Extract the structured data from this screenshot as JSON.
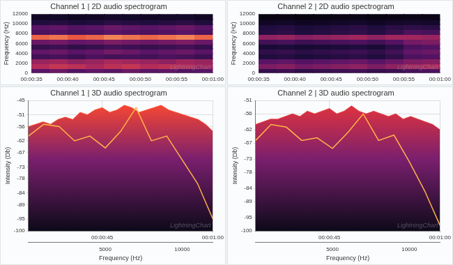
{
  "chart_data": [
    {
      "type": "heatmap",
      "title": "Channel 1 | 2D audio spectrogram",
      "ylabel": "Frequency (Hz)",
      "watermark": "LightningChart",
      "grid": false,
      "xlim": [
        35,
        60
      ],
      "xticks": [
        {
          "value": 35,
          "label": "00:00:35"
        },
        {
          "value": 40,
          "label": "00:00:40"
        },
        {
          "value": 45,
          "label": "00:00:45"
        },
        {
          "value": 50,
          "label": "00:00:50"
        },
        {
          "value": 55,
          "label": "00:00:55"
        },
        {
          "value": 60,
          "label": "00:01:00"
        }
      ],
      "ylim": [
        0,
        12000
      ],
      "yticks": [
        0,
        2000,
        4000,
        6000,
        8000,
        10000,
        12000
      ],
      "x_bins": [
        35,
        37.5,
        40,
        42.5,
        45,
        47.5,
        50,
        52.5,
        55,
        57.5,
        60
      ],
      "y_bins": [
        0,
        1000,
        2000,
        3000,
        4000,
        5000,
        6000,
        7000,
        8000,
        9000,
        10000,
        11000,
        12000
      ],
      "zlim": [
        -100,
        -45
      ],
      "cells": [
        [
          -70,
          -68,
          -71,
          -69,
          -70,
          -68,
          -70,
          -69,
          -71,
          -70
        ],
        [
          -60,
          -58,
          -59,
          -61,
          -59,
          -58,
          -60,
          -59,
          -60,
          -62
        ],
        [
          -63,
          -62,
          -64,
          -63,
          -61,
          -62,
          -63,
          -64,
          -62,
          -63
        ],
        [
          -74,
          -73,
          -75,
          -72,
          -74,
          -73,
          -74,
          -72,
          -73,
          -75
        ],
        [
          -69,
          -68,
          -70,
          -69,
          -67,
          -68,
          -70,
          -69,
          -68,
          -70
        ],
        [
          -76,
          -75,
          -77,
          -76,
          -74,
          -75,
          -76,
          -75,
          -74,
          -76
        ],
        [
          -68,
          -67,
          -69,
          -68,
          -66,
          -67,
          -68,
          -67,
          -66,
          -68
        ],
        [
          -52,
          -51,
          -53,
          -52,
          -50,
          -51,
          -52,
          -51,
          -50,
          -52
        ],
        [
          -72,
          -71,
          -73,
          -72,
          -70,
          -71,
          -72,
          -71,
          -70,
          -72
        ],
        [
          -70,
          -69,
          -71,
          -70,
          -68,
          -69,
          -70,
          -69,
          -68,
          -70
        ],
        [
          -80,
          -79,
          -81,
          -80,
          -78,
          -79,
          -80,
          -79,
          -78,
          -80
        ],
        [
          -88,
          -87,
          -89,
          -88,
          -86,
          -87,
          -88,
          -87,
          -86,
          -88
        ]
      ]
    },
    {
      "type": "heatmap",
      "title": "Channel 2 | 2D audio spectrogram",
      "ylabel": "Frequency (Hz)",
      "watermark": "LightningChart",
      "grid": false,
      "xlim": [
        35,
        60
      ],
      "xticks": [
        {
          "value": 35,
          "label": "00:00:35"
        },
        {
          "value": 40,
          "label": "00:00:40"
        },
        {
          "value": 45,
          "label": "00:00:45"
        },
        {
          "value": 50,
          "label": "00:00:50"
        },
        {
          "value": 55,
          "label": "00:00:55"
        },
        {
          "value": 60,
          "label": "00:01:00"
        }
      ],
      "ylim": [
        0,
        12000
      ],
      "yticks": [
        0,
        2000,
        4000,
        6000,
        8000,
        10000,
        12000
      ],
      "x_bins": [
        35,
        37.5,
        40,
        42.5,
        45,
        47.5,
        50,
        52.5,
        55,
        57.5,
        60
      ],
      "y_bins": [
        0,
        1000,
        2000,
        3000,
        4000,
        5000,
        6000,
        7000,
        8000,
        9000,
        10000,
        11000,
        12000
      ],
      "zlim": [
        -100,
        -45
      ],
      "cells": [
        [
          -76,
          -75,
          -77,
          -76,
          -75,
          -74,
          -76,
          -75,
          -73,
          -72
        ],
        [
          -66,
          -65,
          -67,
          -66,
          -65,
          -64,
          -66,
          -64,
          -62,
          -61
        ],
        [
          -70,
          -69,
          -71,
          -70,
          -69,
          -68,
          -70,
          -68,
          -66,
          -65
        ],
        [
          -80,
          -79,
          -81,
          -80,
          -79,
          -78,
          -80,
          -77,
          -72,
          -71
        ],
        [
          -77,
          -76,
          -78,
          -77,
          -76,
          -75,
          -77,
          -74,
          -69,
          -68
        ],
        [
          -82,
          -81,
          -83,
          -82,
          -81,
          -80,
          -82,
          -78,
          -72,
          -71
        ],
        [
          -74,
          -73,
          -75,
          -74,
          -73,
          -72,
          -74,
          -71,
          -67,
          -66
        ],
        [
          -64,
          -63,
          -65,
          -64,
          -63,
          -62,
          -64,
          -62,
          -62,
          -63
        ],
        [
          -79,
          -78,
          -80,
          -79,
          -78,
          -77,
          -79,
          -76,
          -72,
          -73
        ],
        [
          -80,
          -79,
          -81,
          -80,
          -79,
          -78,
          -80,
          -78,
          -77,
          -78
        ],
        [
          -88,
          -87,
          -89,
          -88,
          -87,
          -86,
          -88,
          -86,
          -85,
          -86
        ],
        [
          -94,
          -93,
          -95,
          -94,
          -93,
          -92,
          -94,
          -93,
          -92,
          -93
        ]
      ]
    },
    {
      "type": "area",
      "title": "Channel 1 | 3D audio spectrogram",
      "ylabel": "Intensity (Db)",
      "x2label": "Frequency (Hz)",
      "watermark": "LightningChart",
      "grid": true,
      "xlim": [
        35,
        60
      ],
      "xticks": [
        {
          "value": 45,
          "label": "00:00:45"
        },
        {
          "value": 60,
          "label": "00:01:00"
        }
      ],
      "x2lim": [
        0,
        12000
      ],
      "x2ticks": [
        5000,
        10000
      ],
      "ylim": [
        -100,
        -45
      ],
      "yticks": [
        -45,
        -51,
        -56,
        -62,
        -67,
        -73,
        -78,
        -84,
        -89,
        -95,
        -100
      ],
      "series": [
        {
          "color": "#ff4a2e",
          "x": [
            35,
            36,
            37,
            38,
            39,
            40,
            41,
            42,
            43,
            44,
            45,
            46,
            47,
            48,
            49,
            50,
            51,
            52,
            53,
            54,
            55,
            56,
            57,
            58,
            59,
            60
          ],
          "values": [
            -56,
            -55,
            -54,
            -55,
            -53,
            -52,
            -53,
            -50,
            -51,
            -49,
            -48,
            -50,
            -49,
            -47,
            -48,
            -50,
            -49,
            -48,
            -47,
            -49,
            -50,
            -51,
            -52,
            -53,
            -55,
            -58
          ]
        },
        {
          "color": "#ffb347",
          "axis": "x2",
          "x": [
            0,
            1000,
            2000,
            3000,
            4000,
            5000,
            6000,
            7000,
            8000,
            9000,
            10000,
            11000,
            12000
          ],
          "values": [
            -60,
            -55,
            -56,
            -62,
            -60,
            -65,
            -58,
            -48,
            -62,
            -60,
            -70,
            -80,
            -95
          ]
        }
      ]
    },
    {
      "type": "area",
      "title": "Channel 2 | 3D audio spectrogram",
      "ylabel": "Intensity (Db)",
      "x2label": "Frequency (Hz)",
      "watermark": "LightningChart",
      "grid": true,
      "xlim": [
        35,
        60
      ],
      "xticks": [
        {
          "value": 45,
          "label": "00:00:45"
        },
        {
          "value": 60,
          "label": "00:01:00"
        }
      ],
      "x2lim": [
        0,
        12000
      ],
      "x2ticks": [
        5000,
        10000
      ],
      "ylim": [
        -100,
        -51
      ],
      "yticks": [
        -51,
        -56,
        -62,
        -67,
        -73,
        -78,
        -84,
        -89,
        -95,
        -100
      ],
      "series": [
        {
          "color": "#e8353a",
          "x": [
            35,
            36,
            37,
            38,
            39,
            40,
            41,
            42,
            43,
            44,
            45,
            46,
            47,
            48,
            49,
            50,
            51,
            52,
            53,
            54,
            55,
            56,
            57,
            58,
            59,
            60
          ],
          "values": [
            -60,
            -59,
            -58,
            -58,
            -57,
            -56,
            -57,
            -55,
            -56,
            -55,
            -54,
            -56,
            -55,
            -53,
            -55,
            -56,
            -55,
            -56,
            -57,
            -56,
            -58,
            -57,
            -58,
            -59,
            -60,
            -62
          ]
        },
        {
          "color": "#ffb347",
          "axis": "x2",
          "x": [
            0,
            1000,
            2000,
            3000,
            4000,
            5000,
            6000,
            7000,
            8000,
            9000,
            10000,
            11000,
            12000
          ],
          "values": [
            -66,
            -60,
            -61,
            -66,
            -65,
            -69,
            -63,
            -56,
            -66,
            -64,
            -74,
            -85,
            -98
          ]
        }
      ]
    }
  ]
}
